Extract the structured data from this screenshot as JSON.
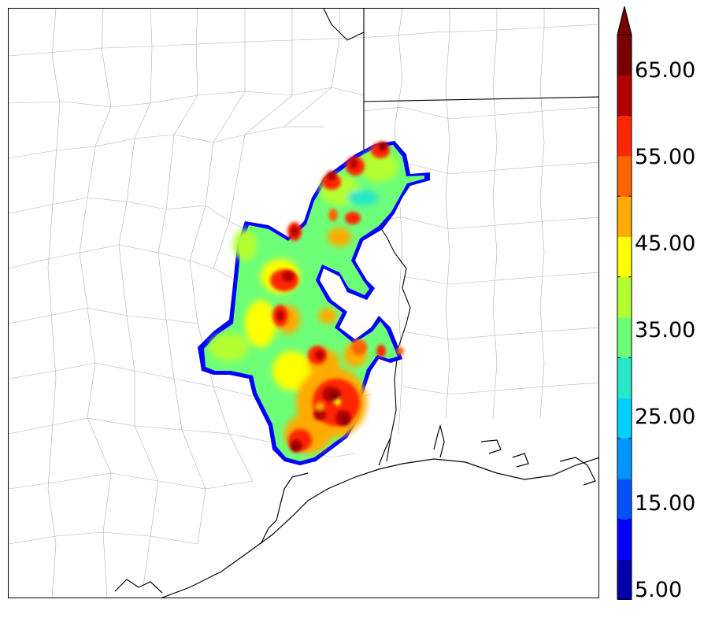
{
  "colorbar": {
    "labels": [
      "65.00",
      "55.00",
      "45.00",
      "35.00",
      "25.00",
      "15.00",
      "5.00"
    ],
    "extend": "max",
    "levels": [
      5,
      10,
      15,
      20,
      25,
      30,
      35,
      40,
      45,
      50,
      55,
      60,
      65,
      70
    ],
    "colors": [
      "#0000a8",
      "#0000ff",
      "#0050ff",
      "#0096ff",
      "#00d2ff",
      "#28e6c8",
      "#6eff78",
      "#b4ff32",
      "#ffff00",
      "#ffaa00",
      "#ff6400",
      "#ff2800",
      "#b40000",
      "#780000"
    ]
  }
}
